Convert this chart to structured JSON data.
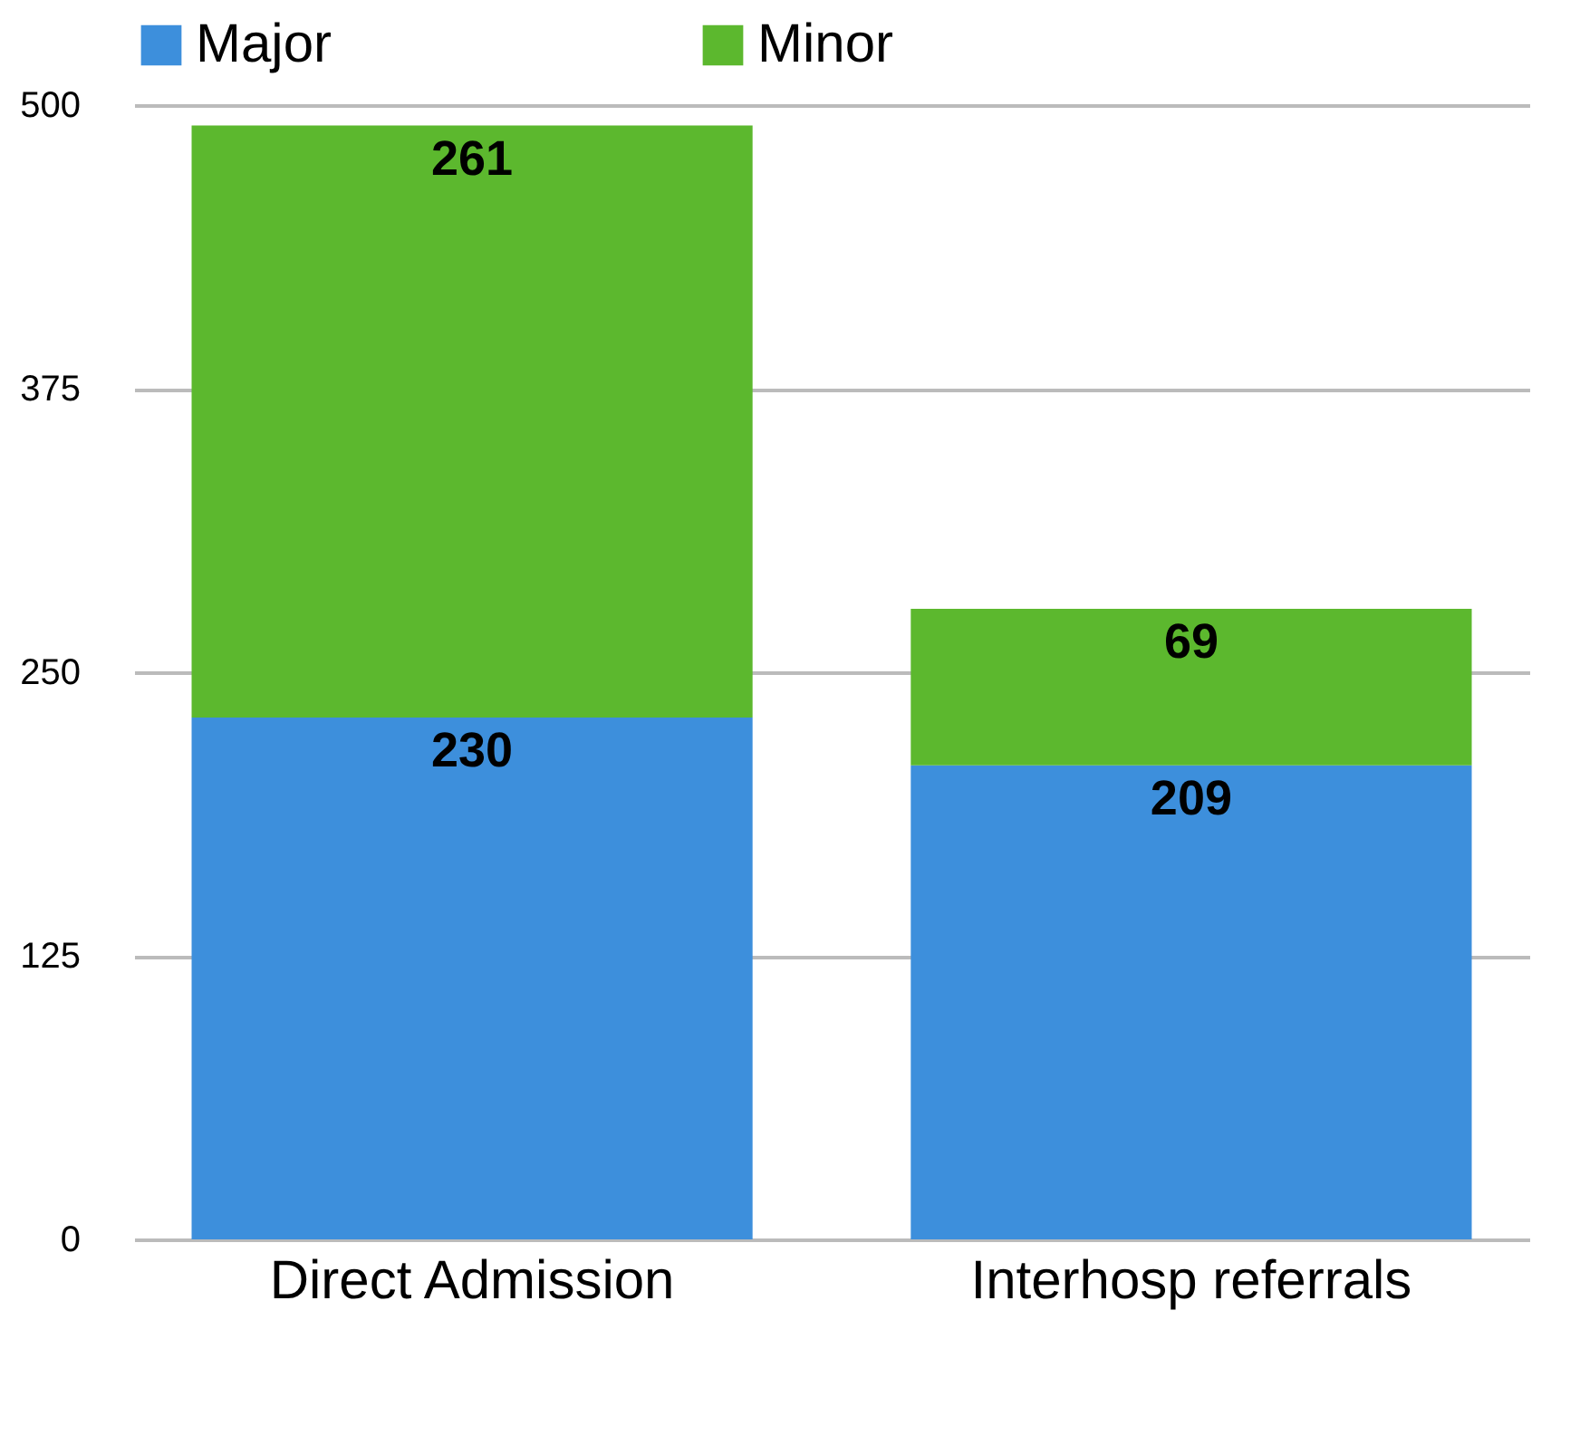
{
  "chart_data": {
    "type": "bar",
    "stacked": true,
    "categories": [
      "Direct Admission",
      "Interhosp referrals"
    ],
    "series": [
      {
        "name": "Major",
        "color": "#3d8fdc",
        "values": [
          230,
          209
        ]
      },
      {
        "name": "Minor",
        "color": "#5cb82e",
        "values": [
          261,
          69
        ]
      }
    ],
    "ylim": [
      0,
      500
    ],
    "yticks": [
      0,
      125,
      250,
      375,
      500
    ],
    "grid": "y",
    "legend": "top",
    "data_labels": true
  }
}
